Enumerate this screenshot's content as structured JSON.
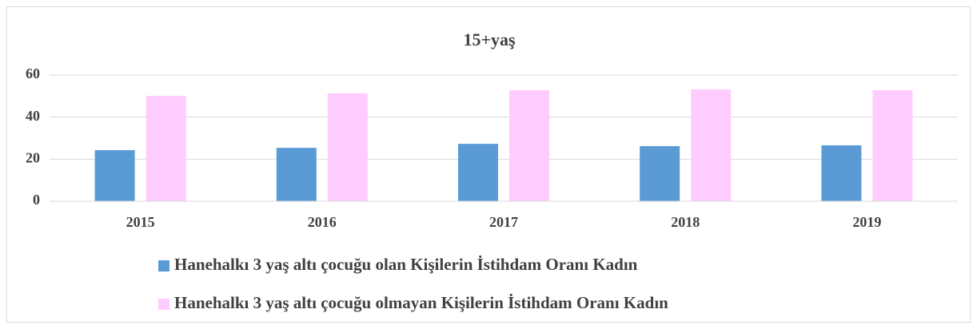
{
  "chart_data": {
    "type": "bar",
    "title": "15+yaş",
    "categories": [
      "2015",
      "2016",
      "2017",
      "2018",
      "2019"
    ],
    "series": [
      {
        "name": "Hanehalkı 3 yaş altı çocuğu olan Kişilerin İstihdam Oranı Kadın",
        "color": "#5b9bd5",
        "values": [
          24.3,
          25.4,
          27.3,
          26.2,
          26.6
        ]
      },
      {
        "name": "Hanehalkı 3 yaş altı çocuğu olmayan Kişilerin İstihdam Oranı Kadın",
        "color": "#ffccff",
        "values": [
          50.1,
          51.3,
          52.8,
          53.2,
          52.8
        ]
      }
    ],
    "ylim": [
      0,
      60
    ],
    "yticks": [
      0,
      20,
      40,
      60
    ],
    "grid": true,
    "legend": "bottom"
  }
}
